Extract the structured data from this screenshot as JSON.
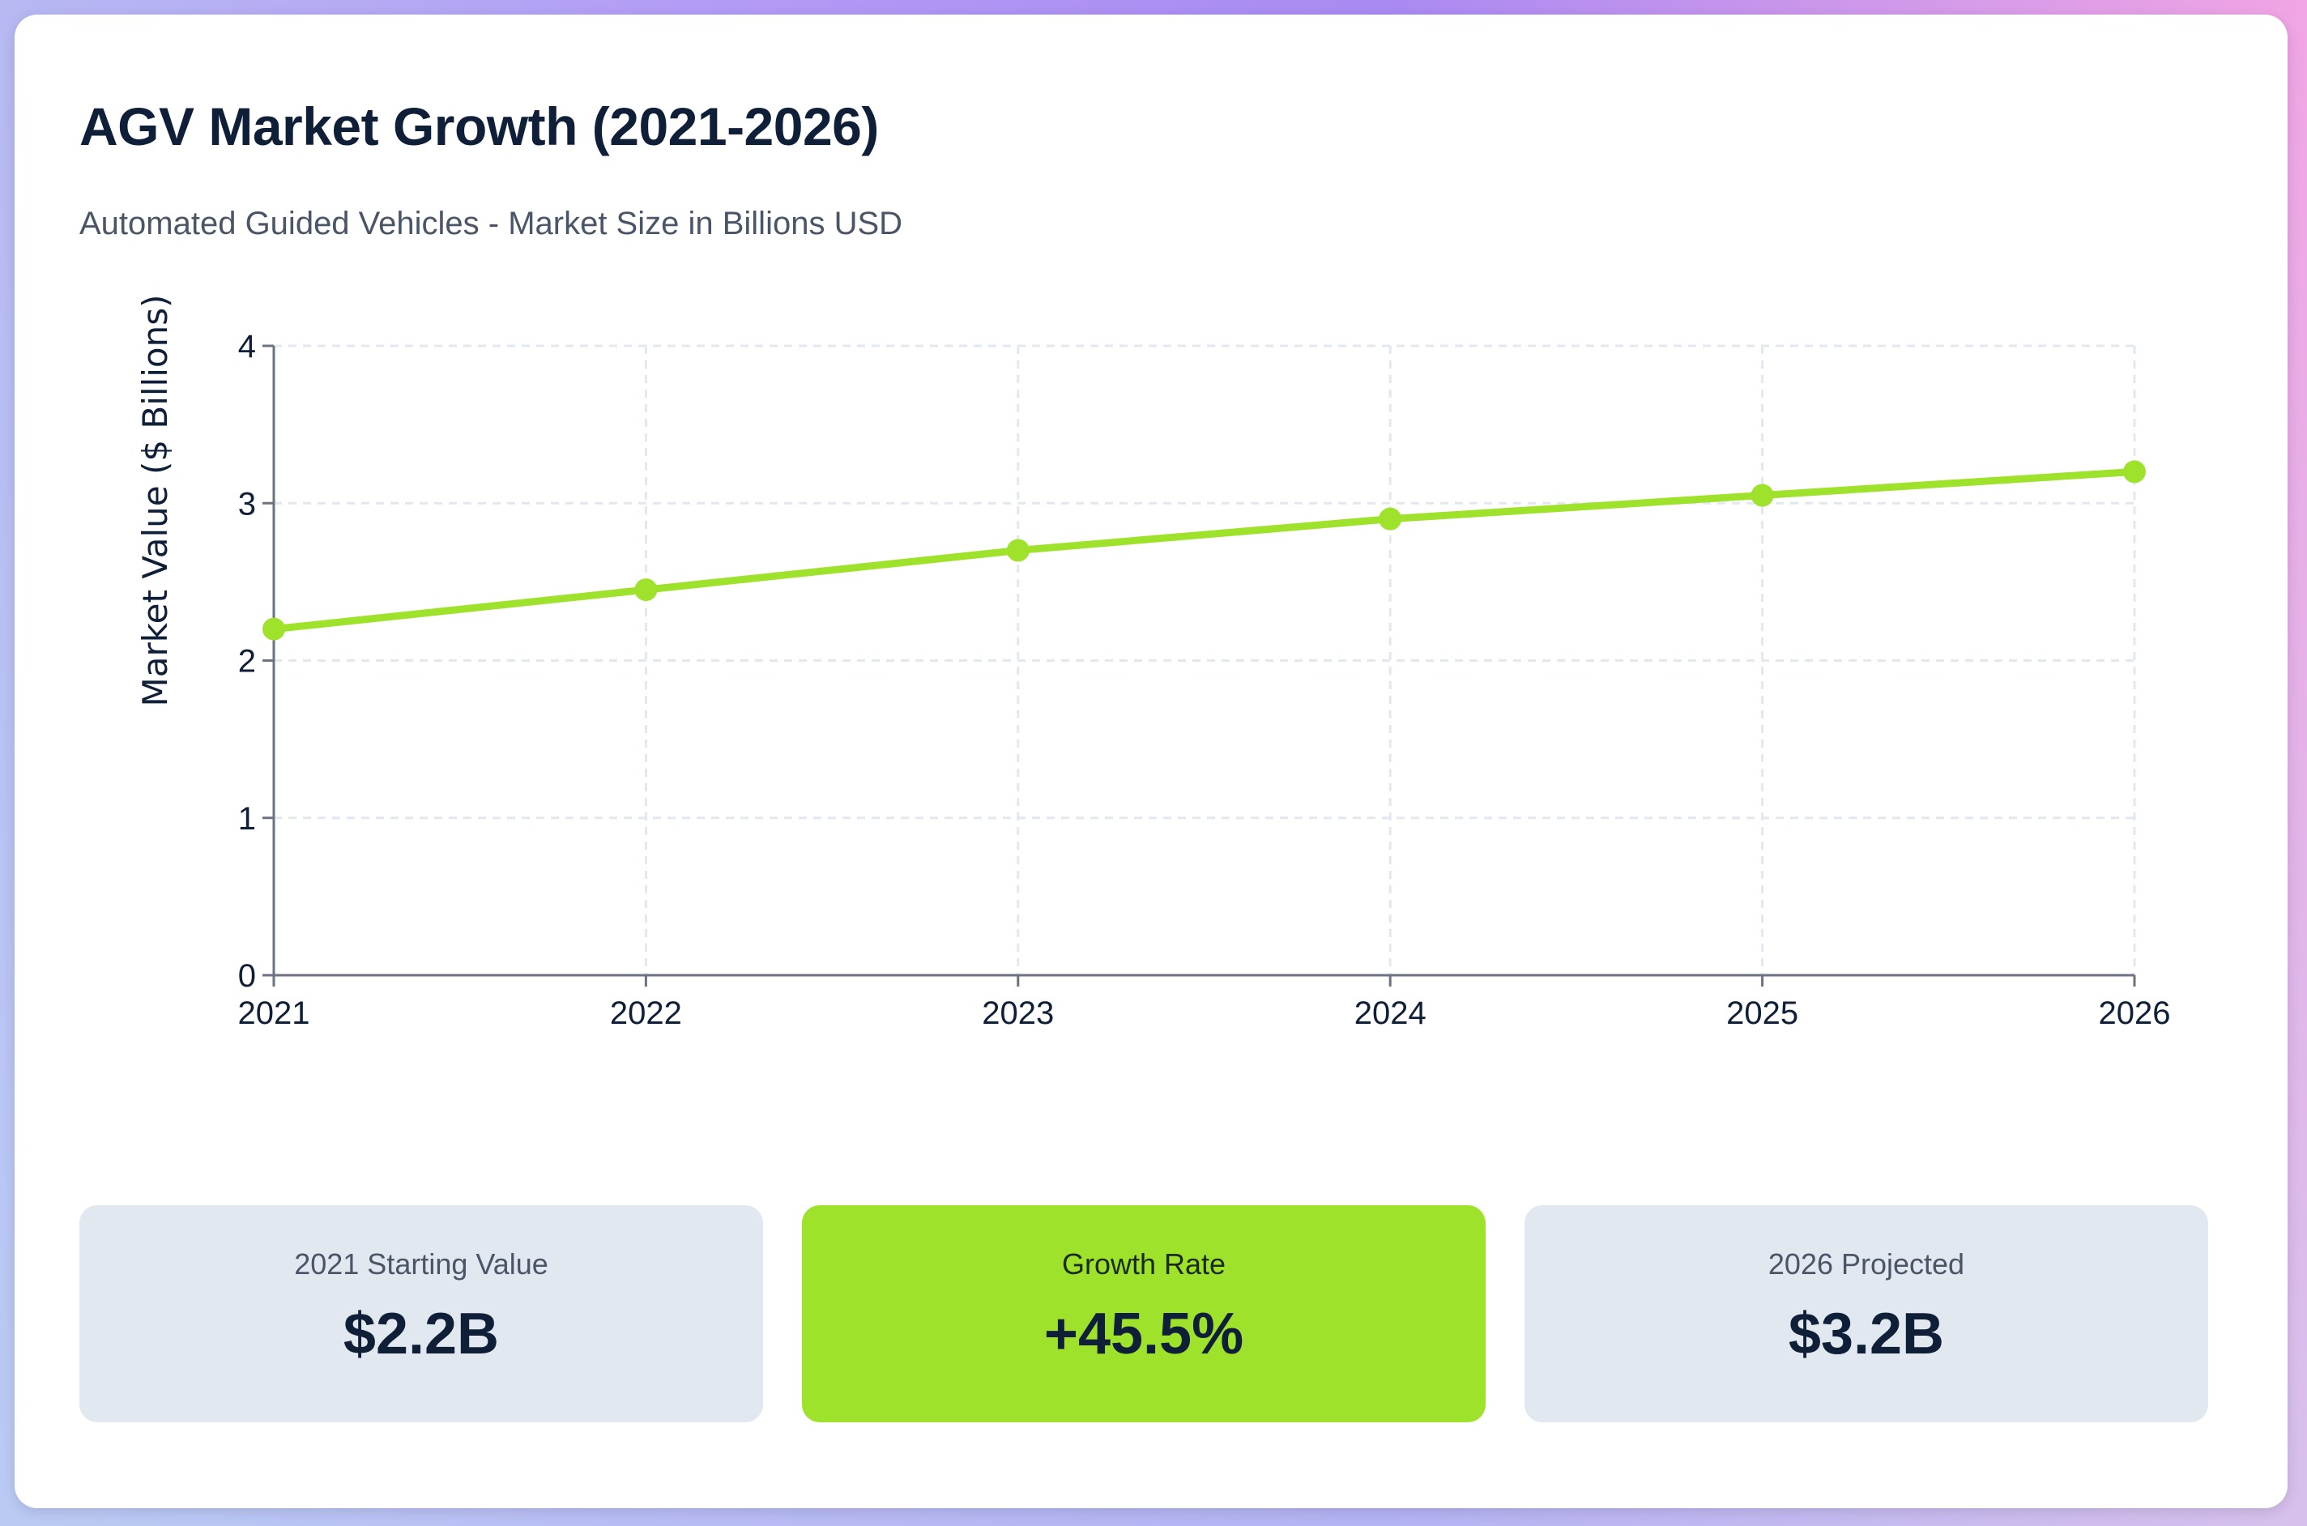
{
  "header": {
    "title": "AGV Market Growth (2021-2026)",
    "subtitle": "Automated Guided Vehicles - Market Size in Billions USD"
  },
  "chart_data": {
    "type": "line",
    "title": "AGV Market Growth (2021-2026)",
    "subtitle": "Automated Guided Vehicles - Market Size in Billions USD",
    "xlabel": "",
    "ylabel": "Market Value ($ Billions)",
    "ylabel_visible": "Market Value ($ Billic",
    "categories": [
      "2021",
      "2022",
      "2023",
      "2024",
      "2025",
      "2026"
    ],
    "series": [
      {
        "values": [
          2.2,
          2.45,
          2.7,
          2.9,
          3.05,
          3.2
        ]
      }
    ],
    "ylim": [
      0,
      4
    ],
    "yticks": [
      "0",
      "1",
      "2",
      "3",
      "4"
    ],
    "grid": true,
    "legend": "none",
    "colors": {
      "line": "#9ee22b",
      "axis": "#6b7280",
      "grid": "#e2e8f0"
    }
  },
  "stats": [
    {
      "label": "2021 Starting Value",
      "value": "$2.2B"
    },
    {
      "label": "Growth Rate",
      "value": "+45.5%"
    },
    {
      "label": "2026 Projected",
      "value": "$3.2B"
    }
  ]
}
